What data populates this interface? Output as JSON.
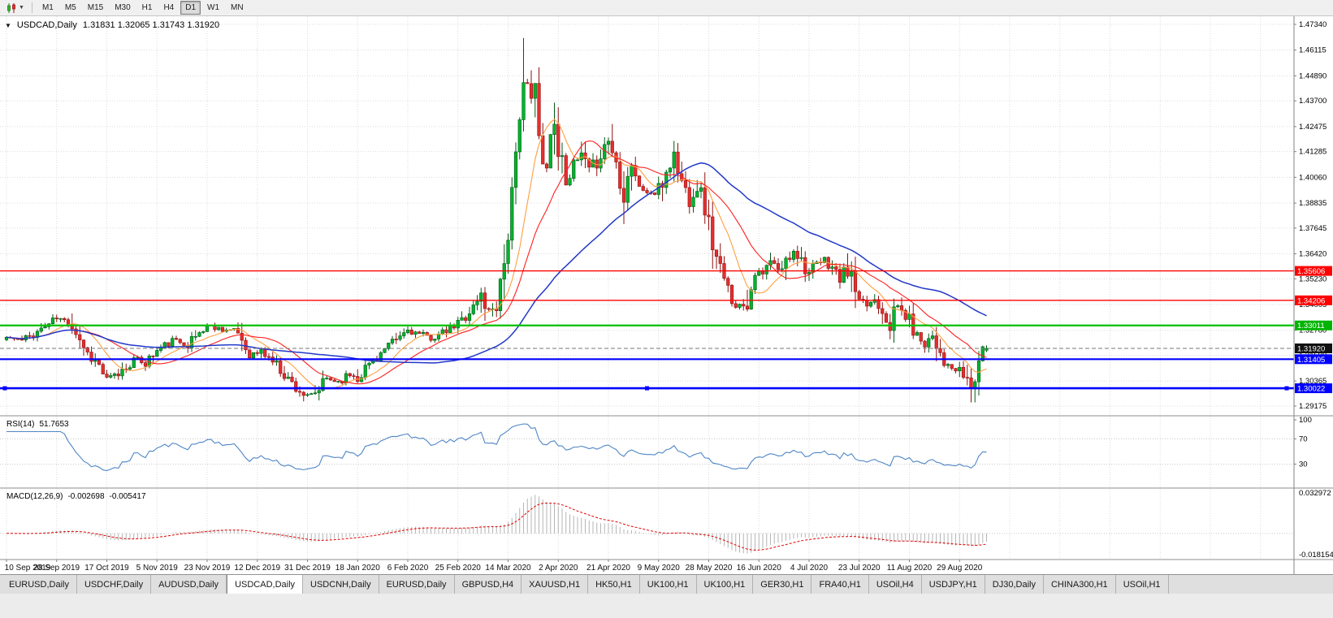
{
  "toolbar": {
    "chart_icon": "candlestick-chart",
    "timeframes": [
      {
        "label": "M1",
        "active": false
      },
      {
        "label": "M5",
        "active": false
      },
      {
        "label": "M15",
        "active": false
      },
      {
        "label": "M30",
        "active": false
      },
      {
        "label": "H1",
        "active": false
      },
      {
        "label": "H4",
        "active": false
      },
      {
        "label": "D1",
        "active": true
      },
      {
        "label": "W1",
        "active": false
      },
      {
        "label": "MN",
        "active": false
      }
    ]
  },
  "chart": {
    "title_symbol": "USDCAD,Daily",
    "title_ohlc": "1.31831 1.32065 1.31743 1.31920"
  },
  "indicators": {
    "rsi": {
      "name": "RSI(14)",
      "value": "51.7653",
      "scale_labels": [
        "100",
        "70",
        "30"
      ],
      "guide_levels": [
        70,
        30
      ],
      "color": "#4f86c6"
    },
    "macd": {
      "name": "MACD(12,26,9)",
      "value1": "-0.002698",
      "value2": "-0.005417",
      "scale_labels": [
        "0.032972",
        "-0.018154"
      ]
    }
  },
  "tabs": [
    {
      "label": "EURUSD,Daily",
      "active": false
    },
    {
      "label": "USDCHF,Daily",
      "active": false
    },
    {
      "label": "AUDUSD,Daily",
      "active": false
    },
    {
      "label": "USDCAD,Daily",
      "active": true
    },
    {
      "label": "USDCNH,Daily",
      "active": false
    },
    {
      "label": "EURUSD,Daily",
      "active": false
    },
    {
      "label": "GBPUSD,H4",
      "active": false
    },
    {
      "label": "XAUUSD,H1",
      "active": false
    },
    {
      "label": "HK50,H1",
      "active": false
    },
    {
      "label": "UK100,H1",
      "active": false
    },
    {
      "label": "UK100,H1",
      "active": false
    },
    {
      "label": "GER30,H1",
      "active": false
    },
    {
      "label": "FRA40,H1",
      "active": false
    },
    {
      "label": "USOil,H4",
      "active": false
    },
    {
      "label": "USDJPY,H1",
      "active": false
    },
    {
      "label": "DJ30,Daily",
      "active": false
    },
    {
      "label": "CHINA300,H1",
      "active": false
    },
    {
      "label": "USOil,H1",
      "active": false
    }
  ],
  "chart_data": {
    "type": "candlestick",
    "symbol": "USDCAD",
    "period": "Daily",
    "num_candles": 255,
    "seed": 11,
    "ylim": [
      1.29175,
      1.4734
    ],
    "y_ticks": [
      "1.47340",
      "1.46115",
      "1.44890",
      "1.43700",
      "1.42475",
      "1.41285",
      "1.40060",
      "1.38835",
      "1.37645",
      "1.36420",
      "1.35230",
      "1.34005",
      "1.32780",
      "1.31590",
      "1.30365",
      "1.29175"
    ],
    "x_label_indices": [
      0,
      13,
      26,
      39,
      52,
      65,
      78,
      91,
      104,
      117,
      130,
      143,
      156,
      169,
      182,
      195,
      208,
      221,
      234,
      247
    ],
    "x_labels": [
      "10 Sep 2019",
      "28 Sep 2019",
      "17 Oct 2019",
      "5 Nov 2019",
      "23 Nov 2019",
      "12 Dec 2019",
      "31 Dec 2019",
      "18 Jan 2020",
      "6 Feb 2020",
      "25 Feb 2020",
      "14 Mar 2020",
      "2 Apr 2020",
      "21 Apr 2020",
      "9 May 2020",
      "28 May 2020",
      "16 Jun 2020",
      "4 Jul 2020",
      "23 Jul 2020",
      "11 Aug 2020",
      "29 Aug 2020"
    ],
    "ohlc_last": {
      "open": 1.31831,
      "high": 1.32065,
      "low": 1.31743,
      "close": 1.3192
    },
    "spike": {
      "index": 134,
      "high": 1.4669
    },
    "close_anchors": [
      [
        0,
        1.3245
      ],
      [
        4,
        1.3228
      ],
      [
        8,
        1.3272
      ],
      [
        13,
        1.3335
      ],
      [
        17,
        1.331
      ],
      [
        21,
        1.317
      ],
      [
        24,
        1.311
      ],
      [
        26,
        1.3042
      ],
      [
        29,
        1.307
      ],
      [
        33,
        1.314
      ],
      [
        36,
        1.3125
      ],
      [
        39,
        1.318
      ],
      [
        43,
        1.323
      ],
      [
        47,
        1.3215
      ],
      [
        52,
        1.33
      ],
      [
        56,
        1.3285
      ],
      [
        60,
        1.327
      ],
      [
        63,
        1.316
      ],
      [
        66,
        1.3175
      ],
      [
        69,
        1.3135
      ],
      [
        72,
        1.307
      ],
      [
        75,
        1.3005
      ],
      [
        78,
        1.2958
      ],
      [
        80,
        1.2972
      ],
      [
        83,
        1.3048
      ],
      [
        86,
        1.3035
      ],
      [
        89,
        1.3068
      ],
      [
        91,
        1.3055
      ],
      [
        94,
        1.312
      ],
      [
        98,
        1.3185
      ],
      [
        101,
        1.323
      ],
      [
        104,
        1.328
      ],
      [
        107,
        1.3258
      ],
      [
        110,
        1.3242
      ],
      [
        113,
        1.3262
      ],
      [
        116,
        1.3295
      ],
      [
        119,
        1.3348
      ],
      [
        121,
        1.3388
      ],
      [
        123,
        1.3445
      ],
      [
        125,
        1.3365
      ],
      [
        127,
        1.342
      ],
      [
        129,
        1.361
      ],
      [
        130,
        1.3745
      ],
      [
        131,
        1.392
      ],
      [
        132,
        1.4075
      ],
      [
        133,
        1.425
      ],
      [
        134,
        1.4498
      ],
      [
        135,
        1.446
      ],
      [
        136,
        1.434
      ],
      [
        137,
        1.4445
      ],
      [
        138,
        1.418
      ],
      [
        139,
        1.4055
      ],
      [
        140,
        1.411
      ],
      [
        141,
        1.421
      ],
      [
        142,
        1.426
      ],
      [
        143,
        1.4145
      ],
      [
        145,
        1.4
      ],
      [
        147,
        1.406
      ],
      [
        149,
        1.4105
      ],
      [
        151,
        1.4025
      ],
      [
        153,
        1.4085
      ],
      [
        156,
        1.419
      ],
      [
        158,
        1.4075
      ],
      [
        160,
        1.394
      ],
      [
        162,
        1.409
      ],
      [
        164,
        1.3955
      ],
      [
        167,
        1.393
      ],
      [
        169,
        1.3925
      ],
      [
        171,
        1.4035
      ],
      [
        173,
        1.4105
      ],
      [
        175,
        1.3985
      ],
      [
        177,
        1.3905
      ],
      [
        179,
        1.3975
      ],
      [
        181,
        1.387
      ],
      [
        182,
        1.378
      ],
      [
        184,
        1.3615
      ],
      [
        186,
        1.3505
      ],
      [
        188,
        1.3425
      ],
      [
        190,
        1.339
      ],
      [
        192,
        1.3425
      ],
      [
        194,
        1.3555
      ],
      [
        196,
        1.3535
      ],
      [
        198,
        1.3605
      ],
      [
        200,
        1.3555
      ],
      [
        202,
        1.36
      ],
      [
        204,
        1.3675
      ],
      [
        206,
        1.3615
      ],
      [
        208,
        1.355
      ],
      [
        210,
        1.359
      ],
      [
        212,
        1.3608
      ],
      [
        214,
        1.3578
      ],
      [
        216,
        1.3522
      ],
      [
        218,
        1.3575
      ],
      [
        220,
        1.3465
      ],
      [
        221,
        1.3412
      ],
      [
        223,
        1.3398
      ],
      [
        225,
        1.3428
      ],
      [
        227,
        1.3382
      ],
      [
        229,
        1.3312
      ],
      [
        231,
        1.3392
      ],
      [
        234,
        1.3322
      ],
      [
        236,
        1.3252
      ],
      [
        238,
        1.3222
      ],
      [
        240,
        1.3262
      ],
      [
        242,
        1.3182
      ],
      [
        244,
        1.3102
      ],
      [
        247,
        1.3078
      ],
      [
        249,
        1.3045
      ],
      [
        250,
        1.2996
      ],
      [
        251,
        1.3062
      ],
      [
        252,
        1.3132
      ],
      [
        253,
        1.3185
      ],
      [
        254,
        1.3192
      ]
    ],
    "moving_averages": [
      {
        "period": 10,
        "color": "#ff9f40",
        "width": 1.1
      },
      {
        "period": 20,
        "color": "#ff2020",
        "width": 1.1
      },
      {
        "period": 50,
        "color": "#2238c8",
        "width": 1.5
      }
    ],
    "levels": [
      {
        "value": 1.35606,
        "label": "1.35606",
        "color": "#ff0000",
        "line_width": 1.4,
        "label_bg": "#ff0000",
        "dashed": false,
        "selected": false
      },
      {
        "value": 1.34206,
        "label": "1.34206",
        "color": "#ff0000",
        "line_width": 1.4,
        "label_bg": "#ff0000",
        "dashed": false,
        "selected": false
      },
      {
        "value": 1.33011,
        "label": "1.33011",
        "color": "#00c000",
        "line_width": 2.2,
        "label_bg": "#00b400",
        "dashed": false,
        "selected": false
      },
      {
        "value": 1.3192,
        "label": "1.31920",
        "color": "#777777",
        "line_width": 1,
        "label_bg": "#111111",
        "dashed": true,
        "selected": false
      },
      {
        "value": 1.31405,
        "label": "1.31405",
        "color": "#0000ff",
        "line_width": 2.2,
        "label_bg": "#0000ff",
        "dashed": false,
        "selected": false
      },
      {
        "value": 1.30022,
        "label": "1.30022",
        "color": "#0000ff",
        "line_width": 2.6,
        "label_bg": "#0000ff",
        "dashed": false,
        "selected": true
      }
    ],
    "colors": {
      "up": "#00b32c",
      "up_border": "#005a16",
      "down": "#e62e2e",
      "down_border": "#8f1010",
      "grid": "#dcdcdc",
      "axis_line": "#808080",
      "separator": "#8d8d8d",
      "macd_hist": "#b4b4b4",
      "macd_signal": "#e00000"
    }
  }
}
